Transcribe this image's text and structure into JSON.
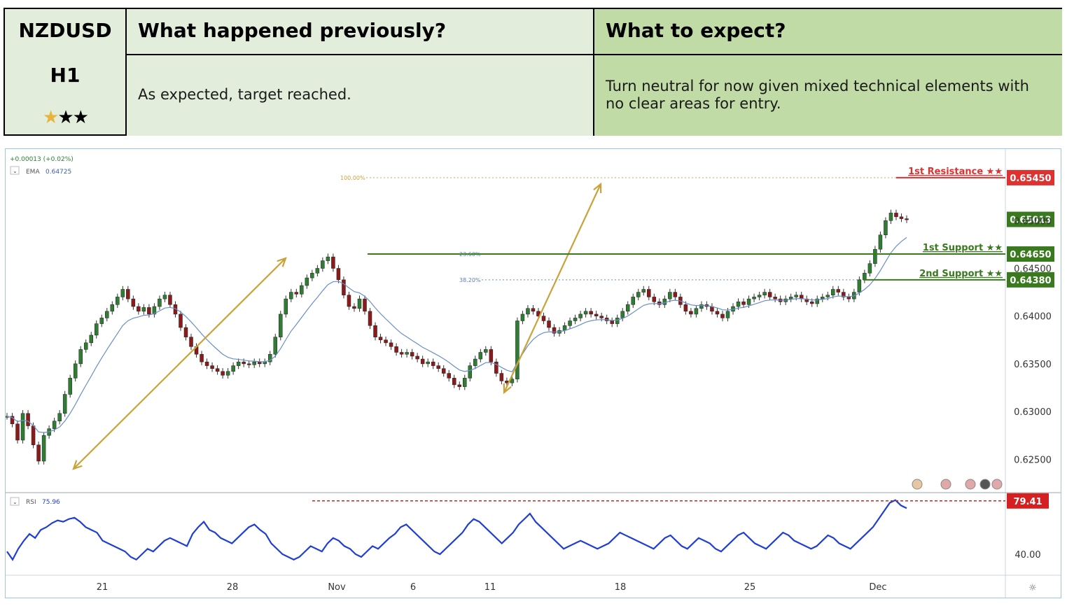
{
  "header": {
    "symbol": "NZDUSD",
    "timeframe": "H1",
    "rating_icon": "star-rating-icon",
    "col_previous_title": "What happened previously?",
    "col_expect_title": "What to expect?",
    "previous_text": "As expected, target reached.",
    "expect_text_line1": "Turn neutral for now given mixed technical elements with",
    "expect_text_line2": "no clear areas for entry."
  },
  "chart_info": {
    "change": "+0.00013 (+0.02%)",
    "ema_label": "EMA",
    "ema_value": "0.64725",
    "rsi_label": "RSI",
    "rsi_value": "75.96"
  },
  "chart_data": {
    "type": "line",
    "title": "",
    "price_ylim": [
      0.6215,
      0.6575
    ],
    "price_ticks": [
      "0.65000",
      "0.64500",
      "0.64000",
      "0.63500",
      "0.63000",
      "0.62500"
    ],
    "x_ticks": [
      "21",
      "28",
      "Nov",
      "6",
      "11",
      "18",
      "25",
      "Dec"
    ],
    "series": [
      {
        "name": "",
        "values": [
          0.6295,
          0.6287,
          0.627,
          0.6298,
          0.6285,
          0.6265,
          0.6248,
          0.6275,
          0.6282,
          0.629,
          0.6298,
          0.6318,
          0.6335,
          0.635,
          0.6365,
          0.6372,
          0.638,
          0.6392,
          0.6398,
          0.6405,
          0.6412,
          0.642,
          0.6428,
          0.6418,
          0.641,
          0.6405,
          0.6409,
          0.6402,
          0.641,
          0.6418,
          0.6422,
          0.6412,
          0.6402,
          0.6388,
          0.6378,
          0.6368,
          0.636,
          0.6352,
          0.6348,
          0.6345,
          0.6342,
          0.6338,
          0.6342,
          0.6348,
          0.6352,
          0.635,
          0.6349,
          0.6352,
          0.635,
          0.6352,
          0.636,
          0.6378,
          0.6402,
          0.6418,
          0.6425,
          0.6423,
          0.6432,
          0.644,
          0.6445,
          0.645,
          0.6458,
          0.6462,
          0.645,
          0.6438,
          0.6422,
          0.641,
          0.6408,
          0.6418,
          0.6405,
          0.639,
          0.6378,
          0.6375,
          0.6372,
          0.6368,
          0.6362,
          0.636,
          0.6362,
          0.6358,
          0.6355,
          0.635,
          0.6352,
          0.6348,
          0.6345,
          0.634,
          0.6335,
          0.6328,
          0.6326,
          0.6335,
          0.6348,
          0.6355,
          0.6362,
          0.6365,
          0.6352,
          0.634,
          0.6332,
          0.633,
          0.6334,
          0.6395,
          0.6402,
          0.6408,
          0.6405,
          0.64,
          0.6395,
          0.6388,
          0.6382,
          0.6385,
          0.639,
          0.6395,
          0.6398,
          0.6402,
          0.6405,
          0.6402,
          0.64,
          0.6398,
          0.6395,
          0.6392,
          0.6398,
          0.6405,
          0.6412,
          0.642,
          0.6425,
          0.6428,
          0.642,
          0.6415,
          0.6412,
          0.6418,
          0.6425,
          0.642,
          0.6412,
          0.6405,
          0.6402,
          0.6408,
          0.6412,
          0.641,
          0.6405,
          0.6402,
          0.6398,
          0.6405,
          0.641,
          0.6415,
          0.6412,
          0.6418,
          0.642,
          0.6422,
          0.6425,
          0.642,
          0.6418,
          0.6415,
          0.6418,
          0.642,
          0.6422,
          0.6418,
          0.6415,
          0.6413,
          0.6418,
          0.642,
          0.6422,
          0.6428,
          0.6425,
          0.642,
          0.6418,
          0.6425,
          0.6438,
          0.6445,
          0.6455,
          0.647,
          0.6485,
          0.65,
          0.6508,
          0.6504,
          0.6502,
          0.6501
        ]
      },
      {
        "name": "RSI",
        "values": [
          42,
          36,
          44,
          50,
          55,
          52,
          58,
          60,
          63,
          65,
          64,
          66,
          67,
          64,
          60,
          58,
          56,
          50,
          48,
          46,
          44,
          42,
          38,
          36,
          40,
          44,
          42,
          46,
          50,
          52,
          50,
          48,
          46,
          55,
          60,
          64,
          58,
          56,
          52,
          50,
          48,
          52,
          56,
          60,
          62,
          58,
          55,
          48,
          44,
          40,
          38,
          36,
          38,
          42,
          46,
          44,
          42,
          48,
          52,
          50,
          46,
          44,
          40,
          38,
          42,
          46,
          44,
          48,
          52,
          55,
          60,
          62,
          58,
          54,
          50,
          46,
          42,
          40,
          44,
          48,
          52,
          56,
          62,
          66,
          64,
          60,
          56,
          52,
          48,
          52,
          56,
          62,
          66,
          70,
          64,
          60,
          56,
          52,
          48,
          44,
          46,
          48,
          50,
          48,
          46,
          44,
          46,
          48,
          52,
          56,
          54,
          52,
          50,
          48,
          46,
          44,
          48,
          52,
          54,
          50,
          46,
          44,
          48,
          52,
          50,
          48,
          44,
          42,
          46,
          50,
          54,
          56,
          52,
          48,
          46,
          44,
          48,
          52,
          56,
          54,
          50,
          48,
          46,
          44,
          46,
          50,
          54,
          52,
          48,
          46,
          44,
          48,
          52,
          56,
          60,
          66,
          72,
          78,
          80,
          76,
          74
        ]
      }
    ],
    "rsi_ticks": [
      "40.00"
    ],
    "levels": [
      {
        "label": "1st Resistance",
        "stars": "★★",
        "value": "0.65450",
        "color": "#e03131"
      },
      {
        "label": "1st Support",
        "stars": "★★",
        "value": "0.64650",
        "color": "#3a7a1f"
      },
      {
        "label": "2nd Support",
        "stars": "★★",
        "value": "0.64380",
        "color": "#3a7a1f"
      }
    ],
    "last_price": "0.65013",
    "fib_levels": [
      {
        "label": "100.00%",
        "value": 0.6545
      },
      {
        "label": "23.60%",
        "value": 0.6465
      },
      {
        "label": "38.20%",
        "value": 0.6438
      }
    ],
    "rsi_level_value": "79.41",
    "colors": {
      "up": "#2e7d32",
      "down": "#8b1a1a",
      "rsi_line": "#1f3fd1",
      "arrow": "#c9a23a",
      "ema": "#6a8fc9"
    }
  }
}
